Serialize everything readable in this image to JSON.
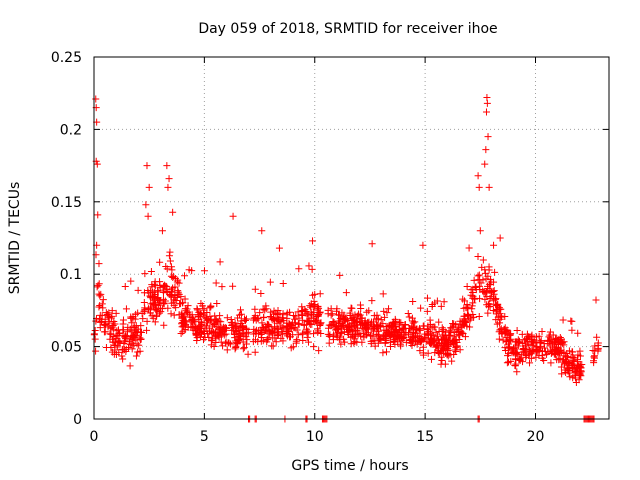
{
  "chart_data": {
    "type": "scatter",
    "title": "Day 059 of 2018, SRMTID for receiver ihoe",
    "xlabel": "GPS time / hours",
    "ylabel": "SRMTID / TECUs",
    "xlim": [
      0,
      23.33
    ],
    "ylim": [
      0,
      0.25
    ],
    "xticks": [
      0,
      5,
      10,
      15,
      20
    ],
    "xtick_labels": [
      "0",
      "5",
      "10",
      "15",
      "20"
    ],
    "yticks": [
      0,
      0.05,
      0.1,
      0.15,
      0.2,
      0.25
    ],
    "ytick_labels": [
      "0",
      "0.05",
      "0.1",
      "0.15",
      "0.2",
      "0.25"
    ],
    "grid": true,
    "marker": "plus",
    "color": "#ff0000",
    "series": [
      {
        "name": "SRMTID",
        "profile": [
          {
            "t": 0.0,
            "mean": 0.055,
            "spread": 0.025
          },
          {
            "t": 0.1,
            "mean": 0.075,
            "spread": 0.035
          },
          {
            "t": 0.2,
            "mean": 0.085,
            "spread": 0.04
          },
          {
            "t": 0.5,
            "mean": 0.07,
            "spread": 0.03
          },
          {
            "t": 1.0,
            "mean": 0.055,
            "spread": 0.025
          },
          {
            "t": 1.5,
            "mean": 0.055,
            "spread": 0.025
          },
          {
            "t": 2.0,
            "mean": 0.06,
            "spread": 0.025
          },
          {
            "t": 2.5,
            "mean": 0.085,
            "spread": 0.03
          },
          {
            "t": 3.0,
            "mean": 0.08,
            "spread": 0.025
          },
          {
            "t": 3.5,
            "mean": 0.095,
            "spread": 0.035
          },
          {
            "t": 4.0,
            "mean": 0.07,
            "spread": 0.025
          },
          {
            "t": 5.0,
            "mean": 0.065,
            "spread": 0.025
          },
          {
            "t": 6.0,
            "mean": 0.06,
            "spread": 0.025
          },
          {
            "t": 7.0,
            "mean": 0.06,
            "spread": 0.025
          },
          {
            "t": 8.0,
            "mean": 0.065,
            "spread": 0.025
          },
          {
            "t": 9.0,
            "mean": 0.065,
            "spread": 0.025
          },
          {
            "t": 10.0,
            "mean": 0.07,
            "spread": 0.03
          },
          {
            "t": 11.0,
            "mean": 0.065,
            "spread": 0.02
          },
          {
            "t": 12.0,
            "mean": 0.065,
            "spread": 0.02
          },
          {
            "t": 13.0,
            "mean": 0.06,
            "spread": 0.02
          },
          {
            "t": 14.0,
            "mean": 0.06,
            "spread": 0.02
          },
          {
            "t": 15.0,
            "mean": 0.055,
            "spread": 0.025
          },
          {
            "t": 16.0,
            "mean": 0.05,
            "spread": 0.02
          },
          {
            "t": 16.5,
            "mean": 0.06,
            "spread": 0.025
          },
          {
            "t": 17.0,
            "mean": 0.075,
            "spread": 0.03
          },
          {
            "t": 17.5,
            "mean": 0.095,
            "spread": 0.04
          },
          {
            "t": 18.0,
            "mean": 0.09,
            "spread": 0.03
          },
          {
            "t": 18.5,
            "mean": 0.06,
            "spread": 0.02
          },
          {
            "t": 19.0,
            "mean": 0.045,
            "spread": 0.02
          },
          {
            "t": 20.0,
            "mean": 0.05,
            "spread": 0.02
          },
          {
            "t": 21.0,
            "mean": 0.05,
            "spread": 0.02
          },
          {
            "t": 21.5,
            "mean": 0.04,
            "spread": 0.02
          },
          {
            "t": 22.0,
            "mean": 0.035,
            "spread": 0.015
          },
          {
            "t": 22.8,
            "mean": 0.05,
            "spread": 0.02
          }
        ],
        "time_ranges": [
          [
            0.0,
            7.0
          ],
          [
            7.2,
            8.6
          ],
          [
            8.7,
            10.3
          ],
          [
            10.6,
            22.1
          ],
          [
            22.6,
            22.85
          ]
        ],
        "n_points": 1700,
        "peaks": [
          {
            "x": 0.08,
            "y": 0.221
          },
          {
            "x": 0.1,
            "y": 0.215
          },
          {
            "x": 0.12,
            "y": 0.205
          },
          {
            "x": 0.1,
            "y": 0.178
          },
          {
            "x": 0.15,
            "y": 0.176
          },
          {
            "x": 0.17,
            "y": 0.141
          },
          {
            "x": 0.12,
            "y": 0.12
          },
          {
            "x": 2.4,
            "y": 0.175
          },
          {
            "x": 2.35,
            "y": 0.148
          },
          {
            "x": 2.45,
            "y": 0.14
          },
          {
            "x": 2.5,
            "y": 0.16
          },
          {
            "x": 3.3,
            "y": 0.175
          },
          {
            "x": 3.4,
            "y": 0.166
          },
          {
            "x": 3.35,
            "y": 0.16
          },
          {
            "x": 3.1,
            "y": 0.13
          },
          {
            "x": 6.3,
            "y": 0.14
          },
          {
            "x": 7.6,
            "y": 0.13
          },
          {
            "x": 8.4,
            "y": 0.118
          },
          {
            "x": 9.9,
            "y": 0.123
          },
          {
            "x": 12.6,
            "y": 0.121
          },
          {
            "x": 14.9,
            "y": 0.12
          },
          {
            "x": 17.4,
            "y": 0.168
          },
          {
            "x": 17.45,
            "y": 0.16
          },
          {
            "x": 17.5,
            "y": 0.13
          },
          {
            "x": 17.8,
            "y": 0.222
          },
          {
            "x": 17.82,
            "y": 0.218
          },
          {
            "x": 17.78,
            "y": 0.212
          },
          {
            "x": 17.85,
            "y": 0.195
          },
          {
            "x": 17.75,
            "y": 0.186
          },
          {
            "x": 17.7,
            "y": 0.176
          },
          {
            "x": 17.9,
            "y": 0.16
          },
          {
            "x": 18.1,
            "y": 0.12
          },
          {
            "x": 18.4,
            "y": 0.125
          }
        ],
        "zero_points": [
          7.0,
          7.05,
          7.3,
          7.35,
          8.65,
          9.6,
          9.65,
          10.35,
          10.4,
          10.45,
          10.5,
          10.55,
          17.4,
          17.45,
          22.2,
          22.25,
          22.3,
          22.35,
          22.4,
          22.45,
          22.5,
          22.55,
          22.6,
          22.65
        ]
      }
    ]
  }
}
